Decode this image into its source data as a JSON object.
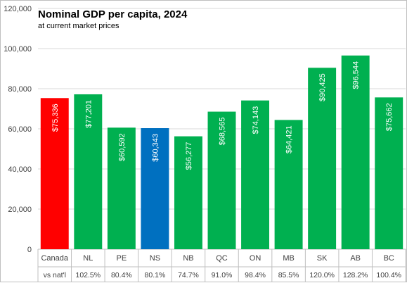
{
  "chart_data": {
    "type": "bar",
    "title": "Nominal GDP per capita, 2024",
    "subtitle": "at current market prices",
    "categories": [
      "Canada",
      "NL",
      "PE",
      "NS",
      "NB",
      "QC",
      "ON",
      "MB",
      "SK",
      "AB",
      "BC"
    ],
    "values": [
      75336,
      77201,
      60592,
      60343,
      56277,
      68565,
      74143,
      64421,
      90425,
      96544,
      75662
    ],
    "value_labels": [
      "$75,336",
      "$77,201",
      "$60,592",
      "$60,343",
      "$56,277",
      "$68,565",
      "$74,143",
      "$64,421",
      "$90,425",
      "$96,544",
      "$75,662"
    ],
    "row2_header": "vs nat'l",
    "row2_values": [
      "102.5%",
      "80.4%",
      "80.1%",
      "74.7%",
      "91.0%",
      "98.4%",
      "85.5%",
      "120.0%",
      "128.2%",
      "100.4%"
    ],
    "bar_colors": [
      "#ff0000",
      "#00b050",
      "#00b050",
      "#0070c0",
      "#00b050",
      "#00b050",
      "#00b050",
      "#00b050",
      "#00b050",
      "#00b050",
      "#00b050"
    ],
    "ylim": [
      0,
      120000
    ],
    "yticks": [
      0,
      20000,
      40000,
      60000,
      80000,
      100000,
      120000
    ],
    "ytick_labels": [
      "0",
      "20,000",
      "40,000",
      "60,000",
      "80,000",
      "100,000",
      "120,000"
    ],
    "grid": true,
    "xlabel": "",
    "ylabel": ""
  }
}
